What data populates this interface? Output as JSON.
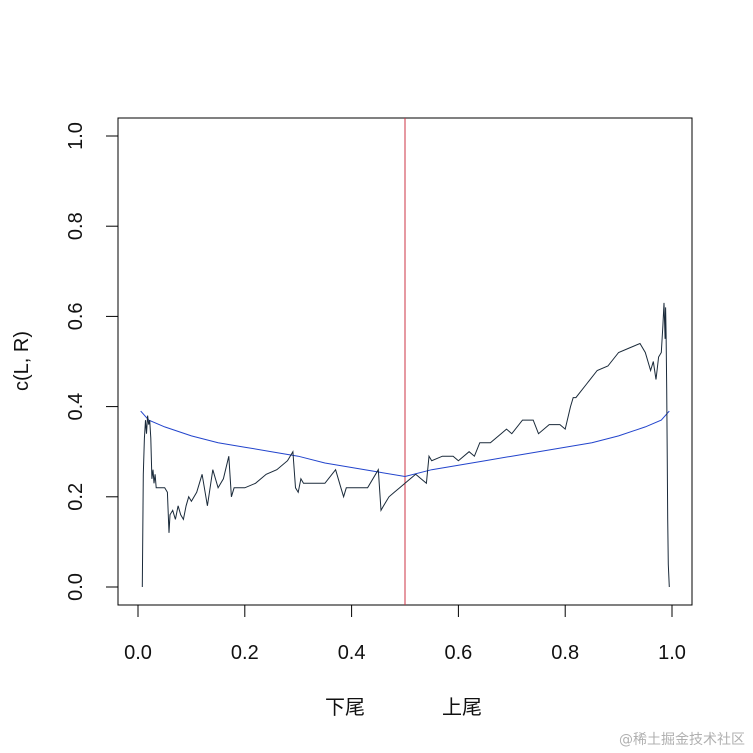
{
  "chart_data": {
    "type": "line",
    "title": "",
    "xlabel_left": "下尾",
    "xlabel_right": "上尾",
    "ylabel": "c(L, R)",
    "xlim": [
      0,
      1
    ],
    "ylim": [
      0,
      1
    ],
    "x_ticks": [
      "0.0",
      "0.2",
      "0.4",
      "0.6",
      "0.8",
      "1.0"
    ],
    "y_ticks": [
      "0.0",
      "0.2",
      "0.4",
      "0.6",
      "0.8",
      "1.0"
    ],
    "vline": 0.5,
    "colors": {
      "empirical": "#1a2a3a",
      "fitted": "#2244cc",
      "vline": "#cc3344",
      "axis": "#000000"
    },
    "series": [
      {
        "x": [
          0.008,
          0.01,
          0.012,
          0.014,
          0.016,
          0.018,
          0.02,
          0.022,
          0.024,
          0.026,
          0.028,
          0.03,
          0.032,
          0.034,
          0.036,
          0.04,
          0.045,
          0.05,
          0.055,
          0.058,
          0.06,
          0.065,
          0.07,
          0.075,
          0.08,
          0.085,
          0.09,
          0.095,
          0.1,
          0.11,
          0.12,
          0.13,
          0.135,
          0.14,
          0.15,
          0.16,
          0.17,
          0.175,
          0.18,
          0.2,
          0.22,
          0.24,
          0.26,
          0.28,
          0.29,
          0.295,
          0.3,
          0.305,
          0.31,
          0.33,
          0.35,
          0.37,
          0.38,
          0.385,
          0.39,
          0.41,
          0.43,
          0.45,
          0.455,
          0.46,
          0.47,
          0.48,
          0.49,
          0.5,
          0.51,
          0.52,
          0.53,
          0.54,
          0.545,
          0.55,
          0.57,
          0.59,
          0.6,
          0.62,
          0.63,
          0.64,
          0.66,
          0.68,
          0.69,
          0.7,
          0.72,
          0.74,
          0.75,
          0.77,
          0.79,
          0.8,
          0.81,
          0.815,
          0.82,
          0.84,
          0.86,
          0.88,
          0.9,
          0.92,
          0.94,
          0.95,
          0.96,
          0.965,
          0.97,
          0.975,
          0.98,
          0.983,
          0.985,
          0.987,
          0.988,
          0.989,
          0.99,
          0.991,
          0.992,
          0.993,
          0.995
        ],
        "y": [
          0.0,
          0.25,
          0.33,
          0.37,
          0.34,
          0.38,
          0.36,
          0.37,
          0.33,
          0.24,
          0.26,
          0.23,
          0.25,
          0.22,
          0.22,
          0.22,
          0.22,
          0.22,
          0.21,
          0.12,
          0.16,
          0.17,
          0.15,
          0.18,
          0.16,
          0.15,
          0.18,
          0.2,
          0.19,
          0.21,
          0.25,
          0.18,
          0.22,
          0.26,
          0.22,
          0.24,
          0.29,
          0.2,
          0.22,
          0.22,
          0.23,
          0.25,
          0.26,
          0.28,
          0.3,
          0.22,
          0.21,
          0.24,
          0.23,
          0.23,
          0.23,
          0.26,
          0.22,
          0.2,
          0.22,
          0.22,
          0.22,
          0.26,
          0.17,
          0.18,
          0.2,
          0.21,
          0.22,
          0.23,
          0.24,
          0.25,
          0.24,
          0.23,
          0.29,
          0.28,
          0.29,
          0.29,
          0.28,
          0.3,
          0.29,
          0.32,
          0.32,
          0.34,
          0.35,
          0.34,
          0.37,
          0.37,
          0.34,
          0.36,
          0.36,
          0.35,
          0.4,
          0.42,
          0.42,
          0.45,
          0.48,
          0.49,
          0.52,
          0.53,
          0.54,
          0.52,
          0.48,
          0.5,
          0.46,
          0.51,
          0.52,
          0.58,
          0.63,
          0.55,
          0.62,
          0.56,
          0.44,
          0.3,
          0.15,
          0.05,
          0.0
        ]
      },
      {
        "x": [
          0.005,
          0.02,
          0.05,
          0.1,
          0.15,
          0.2,
          0.25,
          0.3,
          0.35,
          0.4,
          0.45,
          0.5,
          0.55,
          0.6,
          0.65,
          0.7,
          0.75,
          0.8,
          0.85,
          0.9,
          0.95,
          0.98,
          0.995
        ],
        "y": [
          0.39,
          0.37,
          0.355,
          0.335,
          0.32,
          0.31,
          0.3,
          0.29,
          0.275,
          0.265,
          0.255,
          0.245,
          0.26,
          0.27,
          0.28,
          0.29,
          0.3,
          0.31,
          0.32,
          0.335,
          0.355,
          0.37,
          0.39
        ]
      }
    ]
  },
  "watermark": "@稀土掘金技术社区"
}
